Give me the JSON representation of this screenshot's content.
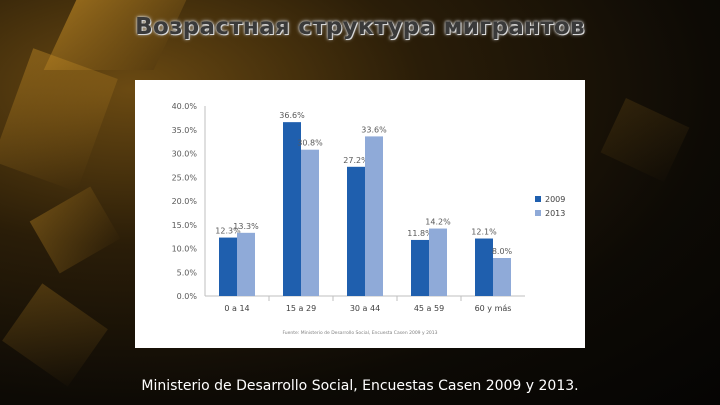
{
  "slide": {
    "title": "Возрастная структура мигрантов",
    "source": "Ministerio de Desarrollo Social, Encuestas Casen 2009 y 2013."
  },
  "chart_data": {
    "type": "bar",
    "categories": [
      "0 a 14",
      "15 a 29",
      "30 a 44",
      "45 a 59",
      "60 y más"
    ],
    "series": [
      {
        "name": "2009",
        "values": [
          12.3,
          36.6,
          27.2,
          11.8,
          12.1
        ],
        "labels": [
          "12.3%",
          "36.6%",
          "27.2%",
          "11.8%",
          "12.1%"
        ],
        "color": "#1f5fae"
      },
      {
        "name": "2013",
        "values": [
          13.3,
          30.8,
          33.6,
          14.2,
          8.0
        ],
        "labels": [
          "13.3%",
          "30.8%",
          "33.6%",
          "14.2%",
          "8.0%"
        ],
        "color": "#8faad8"
      }
    ],
    "yticks": [
      "0.0%",
      "5.0%",
      "10.0%",
      "15.0%",
      "20.0%",
      "25.0%",
      "30.0%",
      "35.0%",
      "40.0%"
    ],
    "ylim": [
      0,
      40
    ],
    "legend_position": "right",
    "grid": false,
    "note": "Fuente: Ministerio de Desarrollo Social, Encuesta Casen 2009 y 2013"
  }
}
